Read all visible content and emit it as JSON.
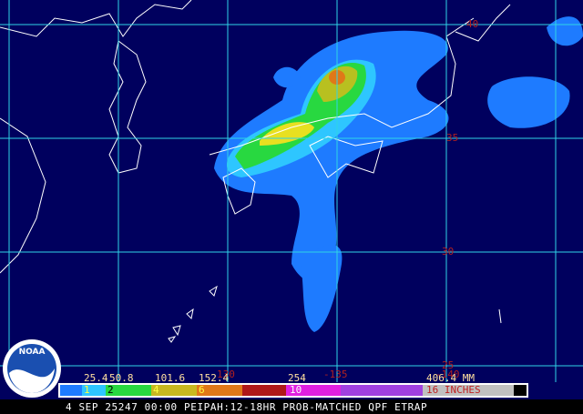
{
  "map": {
    "lat_labels": [
      "40",
      "35",
      "30",
      "25"
    ],
    "lon_labels": [
      "130",
      "-135",
      "-140"
    ],
    "logo": "NOAA"
  },
  "legend": {
    "mm_labels": [
      "25.4",
      "50.8",
      "101.6",
      "152.4",
      "254",
      "406.4 MM"
    ],
    "inch_labels": [
      "1",
      "2",
      "4",
      "6",
      "10",
      "16 INCHES"
    ]
  },
  "footer": "4 SEP 25247 00:00 PEIPAH:12-18HR PROB-MATCHED QPF ETRAP"
}
